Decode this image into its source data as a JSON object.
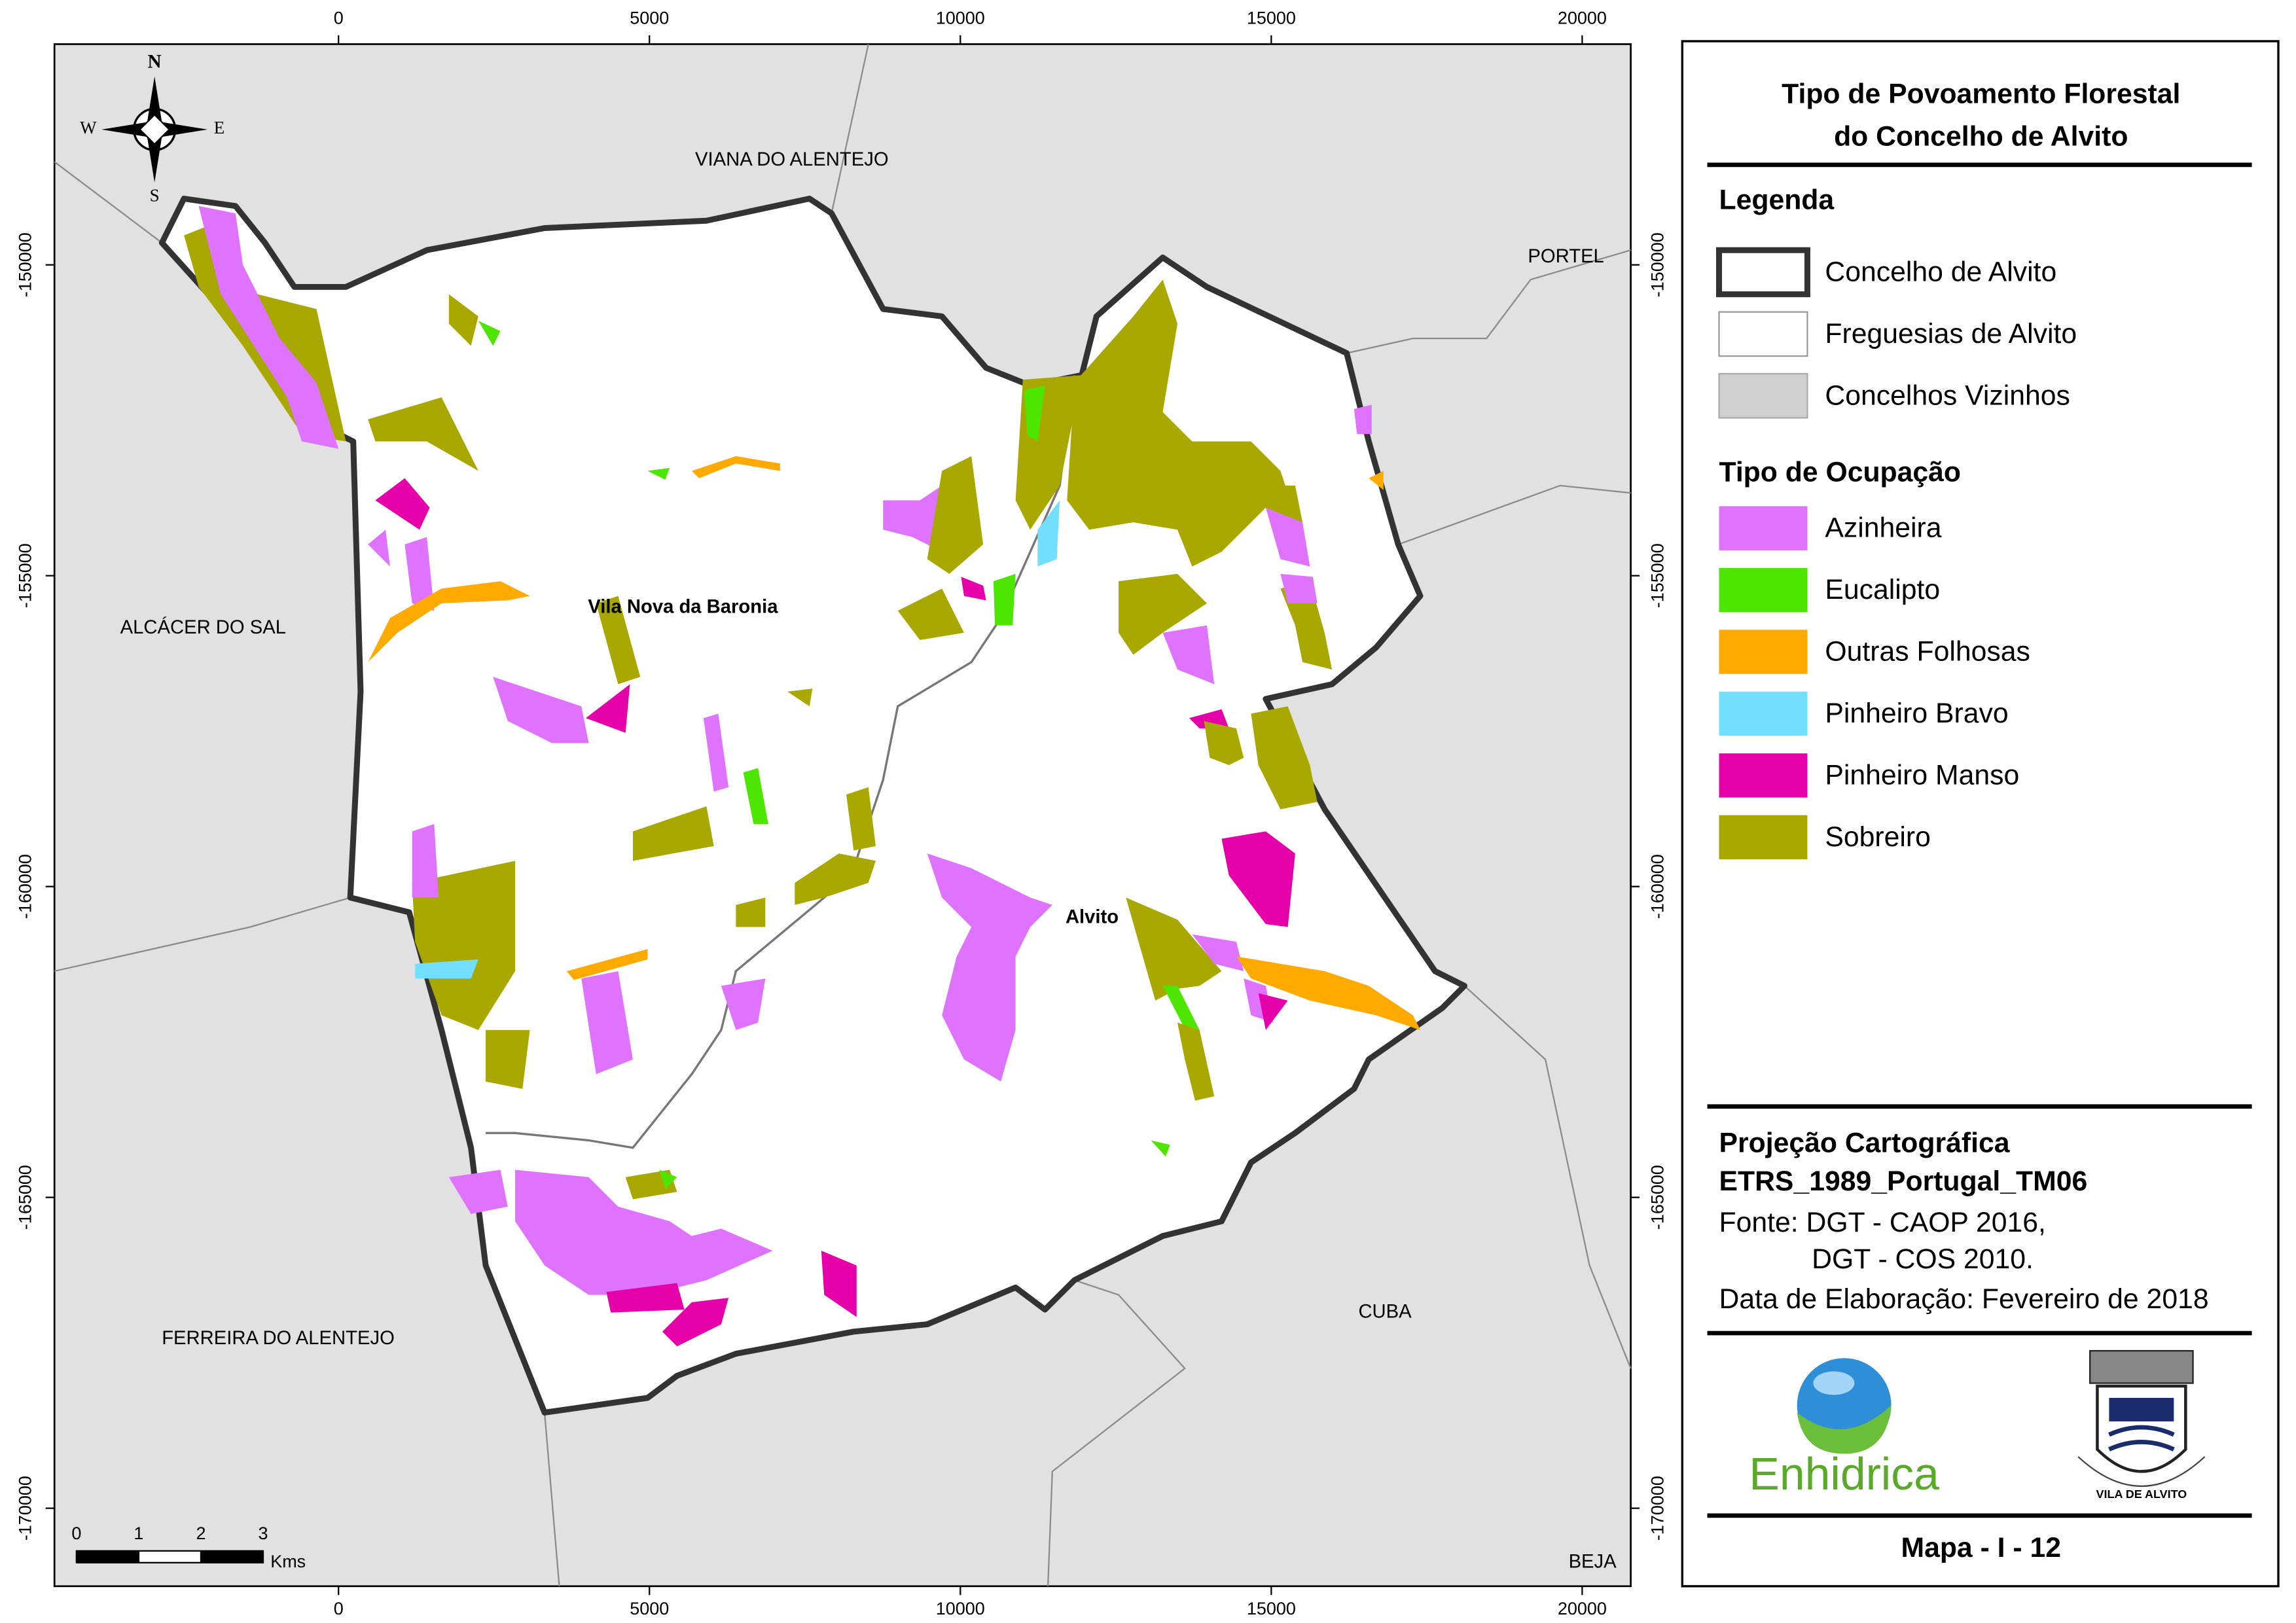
{
  "map": {
    "x_ticks": [
      0,
      5000,
      10000,
      15000,
      20000
    ],
    "y_ticks": [
      -150000,
      -155000,
      -160000,
      -165000,
      -170000
    ],
    "places": {
      "viana": "VIANA DO ALENTEJO",
      "portel": "PORTEL",
      "alcacer": "ALCÁCER DO SAL",
      "ferreira": "FERREIRA DO ALENTEJO",
      "cuba": "CUBA",
      "beja": "BEJA",
      "baronia": "Vila Nova da Baronia",
      "alvito": "Alvito"
    },
    "compass": {
      "n": "N",
      "s": "S",
      "e": "E",
      "w": "W"
    },
    "scale_bar": {
      "ticks": [
        0,
        1,
        2,
        3
      ],
      "unit": "Kms"
    }
  },
  "legend": {
    "title_lines": [
      "Tipo de Povoamento Florestal",
      "do Concelho de Alvito"
    ],
    "heading": "Legenda",
    "boundaries": [
      "Concelho de Alvito",
      "Freguesias de Alvito",
      "Concelhos Vizinhos"
    ],
    "occupation_heading": "Tipo de Ocupação",
    "classes": [
      {
        "label": "Azinheira",
        "color": "#df73ff"
      },
      {
        "label": "Eucalipto",
        "color": "#4ce600"
      },
      {
        "label": "Outras Folhosas",
        "color": "#ffaa00"
      },
      {
        "label": "Pinheiro Bravo",
        "color": "#73dfff"
      },
      {
        "label": "Pinheiro Manso",
        "color": "#e600a9"
      },
      {
        "label": "Sobreiro",
        "color": "#a8a800"
      }
    ],
    "projection": [
      "Projeção Cartográfica",
      "ETRS_1989_Portugal_TM06"
    ],
    "source": [
      "Fonte: DGT - CAOP 2016,",
      "DGT - COS 2010."
    ],
    "date": "Data de Elaboração: Fevereiro de 2018",
    "logos": {
      "enhidrica": "Enhidrica",
      "crest": "VILA DE ALVITO"
    },
    "map_id": "Mapa - I - 12"
  }
}
